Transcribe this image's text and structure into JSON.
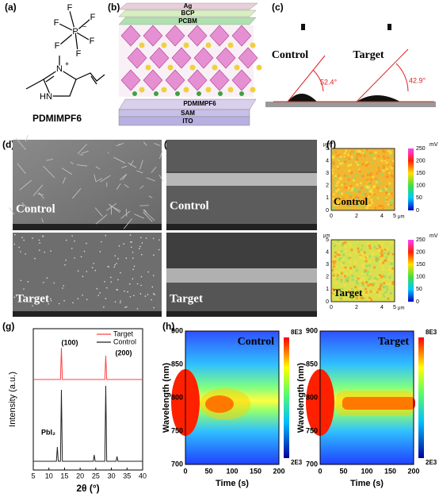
{
  "a": {
    "label": "(a)",
    "compound": "PDMIMPF6",
    "atoms": {
      "p": "P",
      "f": "F",
      "n": "N",
      "plus": "+",
      "minus": "−",
      "hn": "HN"
    }
  },
  "b": {
    "label": "(b)",
    "layers": [
      "Ag",
      "BCP",
      "PCBM",
      "PDMIMPF6",
      "SAM",
      "ITO"
    ]
  },
  "c": {
    "label": "(c)",
    "samples": [
      "Control",
      "Target"
    ],
    "angles": [
      "52.4°",
      "42.9°"
    ]
  },
  "d": {
    "label": "(d)",
    "samples": [
      "Control",
      "Target"
    ]
  },
  "e": {
    "label": "(e)",
    "samples": [
      "Control",
      "Target"
    ]
  },
  "f": {
    "label": "(f)",
    "samples": [
      "Control",
      "Target"
    ],
    "unit": "μm",
    "xticks": [
      0,
      2,
      4,
      5
    ],
    "yticks": [
      0,
      1,
      2,
      3,
      4,
      5
    ],
    "colorbar_unit": "mV",
    "colorbar_ticks": [
      0,
      50,
      100,
      150,
      200,
      250
    ]
  },
  "g": {
    "label": "(g)",
    "xlabel": "2θ (°)",
    "ylabel": "Intensity (a.u.)",
    "xticks": [
      5,
      10,
      15,
      20,
      25,
      30,
      35,
      40
    ],
    "legend": [
      "Target",
      "Control"
    ],
    "peaks": [
      "(100)",
      "(200)",
      "PbI₂"
    ]
  },
  "h": {
    "label": "(h)",
    "ylabel": "Wavelength (nm)",
    "xlabel": "Time (s)",
    "yticks": [
      700,
      750,
      800,
      850,
      900
    ],
    "xticks": [
      0,
      50,
      100,
      150,
      200
    ],
    "colorbar": [
      "8E3",
      "2E3"
    ],
    "samples": [
      "Control",
      "Target"
    ]
  }
}
